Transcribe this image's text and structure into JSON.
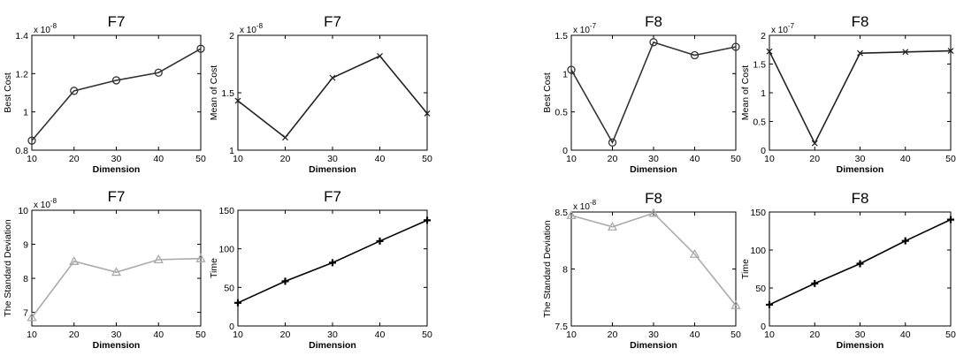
{
  "chart_data": [
    {
      "type": "line",
      "title": "F7",
      "xlabel": "Dimension",
      "ylabel": "Best Cost",
      "multiplier": "x 10",
      "multiplier_exp": "-8",
      "x": [
        10,
        20,
        30,
        40,
        50
      ],
      "values": [
        0.85,
        1.11,
        1.165,
        1.205,
        1.33
      ],
      "xlim": [
        10,
        50
      ],
      "ylim": [
        0.8,
        1.4
      ],
      "xticks": [
        "10",
        "20",
        "30",
        "40",
        "50"
      ],
      "yticks": [
        "0.8",
        "1",
        "1.2",
        "1.4"
      ],
      "ytick_values": [
        0.8,
        1.0,
        1.2,
        1.4
      ],
      "marker": "circle",
      "color": "#333333",
      "grid": false
    },
    {
      "type": "line",
      "title": "F7",
      "xlabel": "Dimension",
      "ylabel": "Mean of Cost",
      "multiplier": "x 10",
      "multiplier_exp": "-8",
      "x": [
        10,
        20,
        30,
        40,
        50
      ],
      "values": [
        1.43,
        1.11,
        1.63,
        1.82,
        1.32
      ],
      "xlim": [
        10,
        50
      ],
      "ylim": [
        1,
        2
      ],
      "xticks": [
        "10",
        "20",
        "30",
        "40",
        "50"
      ],
      "yticks": [
        "1",
        "1.5",
        "2"
      ],
      "ytick_values": [
        1,
        1.5,
        2
      ],
      "marker": "x",
      "color": "#222222",
      "grid": false
    },
    {
      "type": "line",
      "title": "F8",
      "xlabel": "Dimension",
      "ylabel": "Best Cost",
      "multiplier": "x 10",
      "multiplier_exp": "-7",
      "x": [
        10,
        20,
        30,
        40,
        50
      ],
      "values": [
        1.05,
        0.1,
        1.41,
        1.24,
        1.35
      ],
      "xlim": [
        10,
        50
      ],
      "ylim": [
        0,
        1.5
      ],
      "xticks": [
        "10",
        "20",
        "30",
        "40",
        "50"
      ],
      "yticks": [
        "0",
        "0.5",
        "1",
        "1.5"
      ],
      "ytick_values": [
        0,
        0.5,
        1,
        1.5
      ],
      "marker": "circle",
      "color": "#333333",
      "grid": false
    },
    {
      "type": "line",
      "title": "F8",
      "xlabel": "Dimension",
      "ylabel": "Mean of Cost",
      "multiplier": "x 10",
      "multiplier_exp": "-7",
      "x": [
        10,
        20,
        30,
        40,
        50
      ],
      "values": [
        1.72,
        0.12,
        1.69,
        1.71,
        1.73
      ],
      "xlim": [
        10,
        50
      ],
      "ylim": [
        0,
        2
      ],
      "xticks": [
        "10",
        "20",
        "30",
        "40",
        "50"
      ],
      "yticks": [
        "0",
        "0.5",
        "1",
        "1.5",
        "2"
      ],
      "ytick_values": [
        0,
        0.5,
        1,
        1.5,
        2
      ],
      "marker": "x",
      "color": "#222222",
      "grid": false
    },
    {
      "type": "line",
      "title": "F7",
      "xlabel": "Dimension",
      "ylabel": "The Standard Deviation",
      "multiplier": "x 10",
      "multiplier_exp": "-8",
      "x": [
        10,
        20,
        30,
        40,
        50
      ],
      "values": [
        6.85,
        8.5,
        8.18,
        8.55,
        8.58
      ],
      "xlim": [
        10,
        50
      ],
      "ylim": [
        6.6,
        10
      ],
      "xticks": [
        "10",
        "20",
        "30",
        "40",
        "50"
      ],
      "yticks": [
        "7",
        "8",
        "9",
        "10"
      ],
      "ytick_values": [
        7,
        8,
        9,
        10
      ],
      "marker": "triangle",
      "color": "#aaaaaa",
      "grid": false
    },
    {
      "type": "line",
      "title": "F7",
      "xlabel": "Dimension",
      "ylabel": "Time",
      "multiplier": "",
      "multiplier_exp": "",
      "x": [
        10,
        20,
        30,
        40,
        50
      ],
      "values": [
        30,
        58,
        82,
        110,
        137
      ],
      "xlim": [
        10,
        50
      ],
      "ylim": [
        0,
        150
      ],
      "xticks": [
        "10",
        "20",
        "30",
        "40",
        "50"
      ],
      "yticks": [
        "0",
        "50",
        "100",
        "150"
      ],
      "ytick_values": [
        0,
        50,
        100,
        150
      ],
      "marker": "plus",
      "color": "#000000",
      "grid": false
    },
    {
      "type": "line",
      "title": "F8",
      "xlabel": "Dimension",
      "ylabel": "The Standard Deviation",
      "multiplier": "x 10",
      "multiplier_exp": "-8",
      "x": [
        10,
        20,
        30,
        40,
        50
      ],
      "values": [
        8.47,
        8.37,
        8.49,
        8.13,
        7.68
      ],
      "xlim": [
        10,
        50
      ],
      "ylim": [
        7.5,
        8.5
      ],
      "xticks": [
        "10",
        "20",
        "30",
        "40",
        "50"
      ],
      "yticks": [
        "7.5",
        "8",
        "8.5"
      ],
      "ytick_values": [
        7.5,
        8,
        8.5
      ],
      "marker": "triangle",
      "color": "#aaaaaa",
      "grid": false
    },
    {
      "type": "line",
      "title": "F8",
      "xlabel": "Dimension",
      "ylabel": "Time",
      "multiplier": "",
      "multiplier_exp": "",
      "x": [
        10,
        20,
        30,
        40,
        50
      ],
      "values": [
        28,
        56,
        82,
        112,
        140
      ],
      "xlim": [
        10,
        50
      ],
      "ylim": [
        0,
        150
      ],
      "xticks": [
        "10",
        "20",
        "30",
        "40",
        "50"
      ],
      "yticks": [
        "0",
        "50",
        "100",
        "150"
      ],
      "ytick_values": [
        0,
        50,
        100,
        150
      ],
      "marker": "plus",
      "color": "#000000",
      "grid": false
    }
  ]
}
